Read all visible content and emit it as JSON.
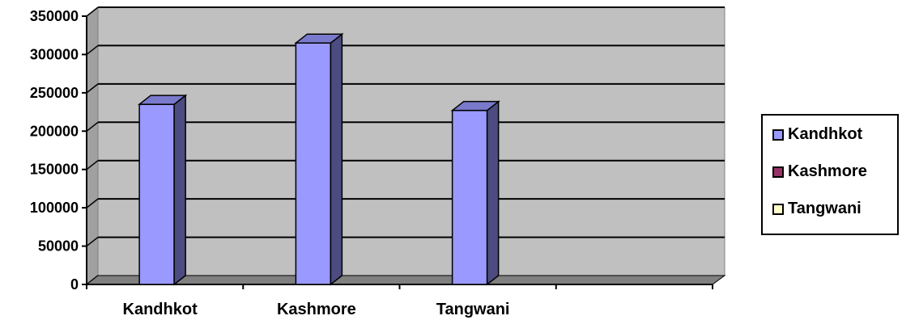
{
  "chart_data": {
    "type": "bar",
    "style": "3d-column",
    "categories": [
      "Kandhkot",
      "Kashmore",
      "Tangwani"
    ],
    "series": [
      {
        "name": "Kandhkot",
        "color": "#9999ff",
        "values": [
          235000,
          null,
          null
        ]
      },
      {
        "name": "Kashmore",
        "color": "#993366",
        "values": [
          null,
          315000,
          null
        ]
      },
      {
        "name": "Tangwani",
        "color": "#ffffcc",
        "values": [
          null,
          null,
          227000
        ]
      }
    ],
    "bar_fill": "#9999ff",
    "bar_side": "#4c4c80",
    "bar_top": "#7a7acc",
    "plot_bg": "#c0c0c0",
    "floor": "#808080",
    "ylim": [
      0,
      350000
    ],
    "yticks": [
      "0",
      "50000",
      "100000",
      "150000",
      "200000",
      "250000",
      "300000",
      "350000"
    ],
    "grid": true,
    "legend_position": "right",
    "title": "",
    "xlabel": "",
    "ylabel": ""
  }
}
